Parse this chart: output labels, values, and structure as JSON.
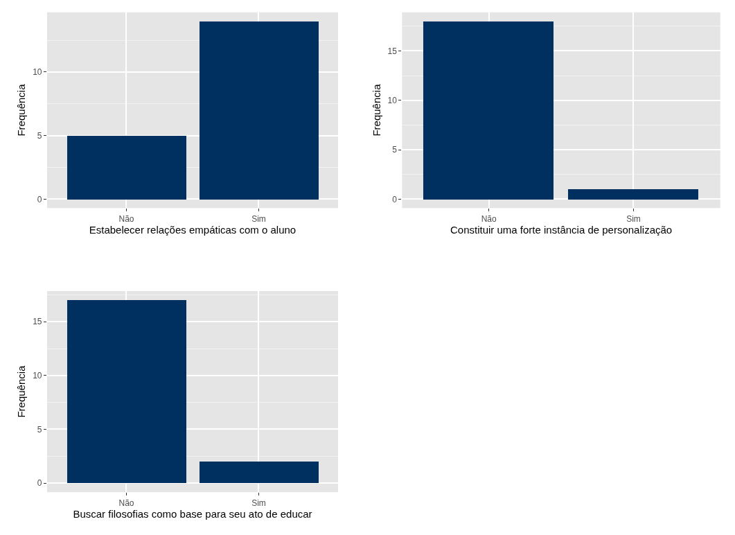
{
  "chart_data": [
    {
      "type": "bar",
      "categories": [
        "Não",
        "Sim"
      ],
      "values": [
        5,
        14
      ],
      "color": "#00305f",
      "xlabel": "Estabelecer relações empáticas com o aluno",
      "ylabel": "Frequência",
      "ylim": [
        -0.7,
        14.7
      ],
      "yticks": [
        0,
        5,
        10
      ],
      "grid": true
    },
    {
      "type": "bar",
      "categories": [
        "Não",
        "Sim"
      ],
      "values": [
        18,
        1
      ],
      "color": "#00305f",
      "xlabel": "Constituir uma forte instância de personalização",
      "ylabel": "Frequência",
      "ylim": [
        -0.9,
        18.9
      ],
      "yticks": [
        0,
        5,
        10,
        15
      ],
      "grid": true
    },
    {
      "type": "bar",
      "categories": [
        "Não",
        "Sim"
      ],
      "values": [
        17,
        2
      ],
      "color": "#00305f",
      "xlabel": "Buscar filosofias como base para seu ato de educar",
      "ylabel": "Frequência",
      "ylim": [
        -0.85,
        17.85
      ],
      "yticks": [
        0,
        5,
        10,
        15
      ],
      "grid": true
    }
  ]
}
